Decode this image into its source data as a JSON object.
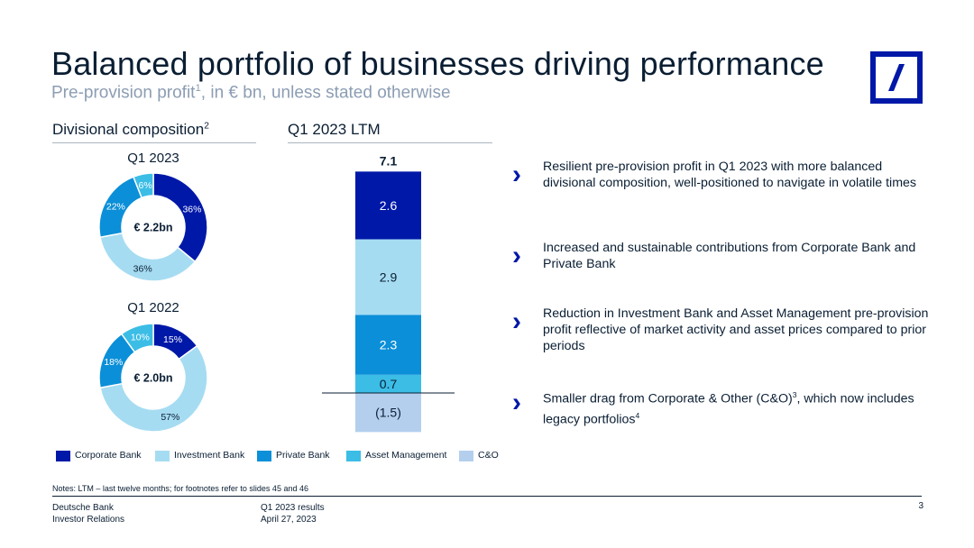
{
  "header": {
    "title": "Balanced portfolio of businesses driving performance",
    "subtitle": "Pre-provision profit",
    "subtitle_sup": "1",
    "subtitle_rest": ", in € bn, unless stated otherwise",
    "logo_icon": "deutsche-bank-logo-icon",
    "brand_color": "#0018a8"
  },
  "sections": {
    "left_heading": "Divisional composition",
    "left_heading_sup": "2",
    "right_heading": "Q1 2023 LTM"
  },
  "colors": {
    "Corporate Bank": "#0018a8",
    "Investment Bank": "#a6dcf2",
    "Private Bank": "#0b8fd8",
    "Asset Management": "#3bbde6",
    "C&O": "#b4cfee"
  },
  "chart_data": [
    {
      "type": "pie",
      "variant": "donut",
      "title": "Q1 2023",
      "center_label": "€ 2.2bn",
      "slices": [
        {
          "name": "Corporate Bank",
          "value": 36,
          "label": "36%"
        },
        {
          "name": "Investment Bank",
          "value": 36,
          "label": "36%"
        },
        {
          "name": "Private Bank",
          "value": 22,
          "label": "22%"
        },
        {
          "name": "Asset Management",
          "value": 6,
          "label": "6%"
        }
      ]
    },
    {
      "type": "pie",
      "variant": "donut",
      "title": "Q1 2022",
      "center_label": "€ 2.0bn",
      "slices": [
        {
          "name": "Corporate Bank",
          "value": 15,
          "label": "15%"
        },
        {
          "name": "Investment Bank",
          "value": 57,
          "label": "57%"
        },
        {
          "name": "Private Bank",
          "value": 18,
          "label": "18%"
        },
        {
          "name": "Asset Management",
          "value": 10,
          "label": "10%"
        }
      ]
    },
    {
      "type": "bar",
      "variant": "stacked",
      "title": "Q1 2023 LTM",
      "total_label": "7.1",
      "segments": [
        {
          "name": "Corporate Bank",
          "value": 2.6,
          "label": "2.6"
        },
        {
          "name": "Investment Bank",
          "value": 2.9,
          "label": "2.9"
        },
        {
          "name": "Private Bank",
          "value": 2.3,
          "label": "2.3"
        },
        {
          "name": "Asset Management",
          "value": 0.7,
          "label": "0.7"
        },
        {
          "name": "C&O",
          "value": -1.5,
          "label": "(1.5)"
        }
      ]
    }
  ],
  "legend": [
    "Corporate Bank",
    "Investment Bank",
    "Private Bank",
    "Asset Management",
    "C&O"
  ],
  "bullets": [
    {
      "text": "Resilient pre-provision profit in Q1 2023 with more balanced divisional composition, well-positioned to navigate in volatile times",
      "sup": "",
      "rest": ""
    },
    {
      "text": "Increased and sustainable contributions from Corporate Bank and Private Bank",
      "sup": "",
      "rest": ""
    },
    {
      "text": "Reduction in Investment Bank and Asset Management pre-provision profit reflective of market activity and asset prices compared to prior periods",
      "sup": "",
      "rest": ""
    },
    {
      "text": "Smaller drag from Corporate & Other (C&O)",
      "sup": "3",
      "rest": ", which now includes legacy portfolios",
      "sup2": "4"
    }
  ],
  "notes": "Notes: LTM – last twelve months; for footnotes refer to slides 45 and 46",
  "footer": {
    "company": "Deutsche Bank",
    "department": "Investor Relations",
    "report": "Q1 2023 results",
    "date": "April 27, 2023",
    "page_number": "3"
  }
}
